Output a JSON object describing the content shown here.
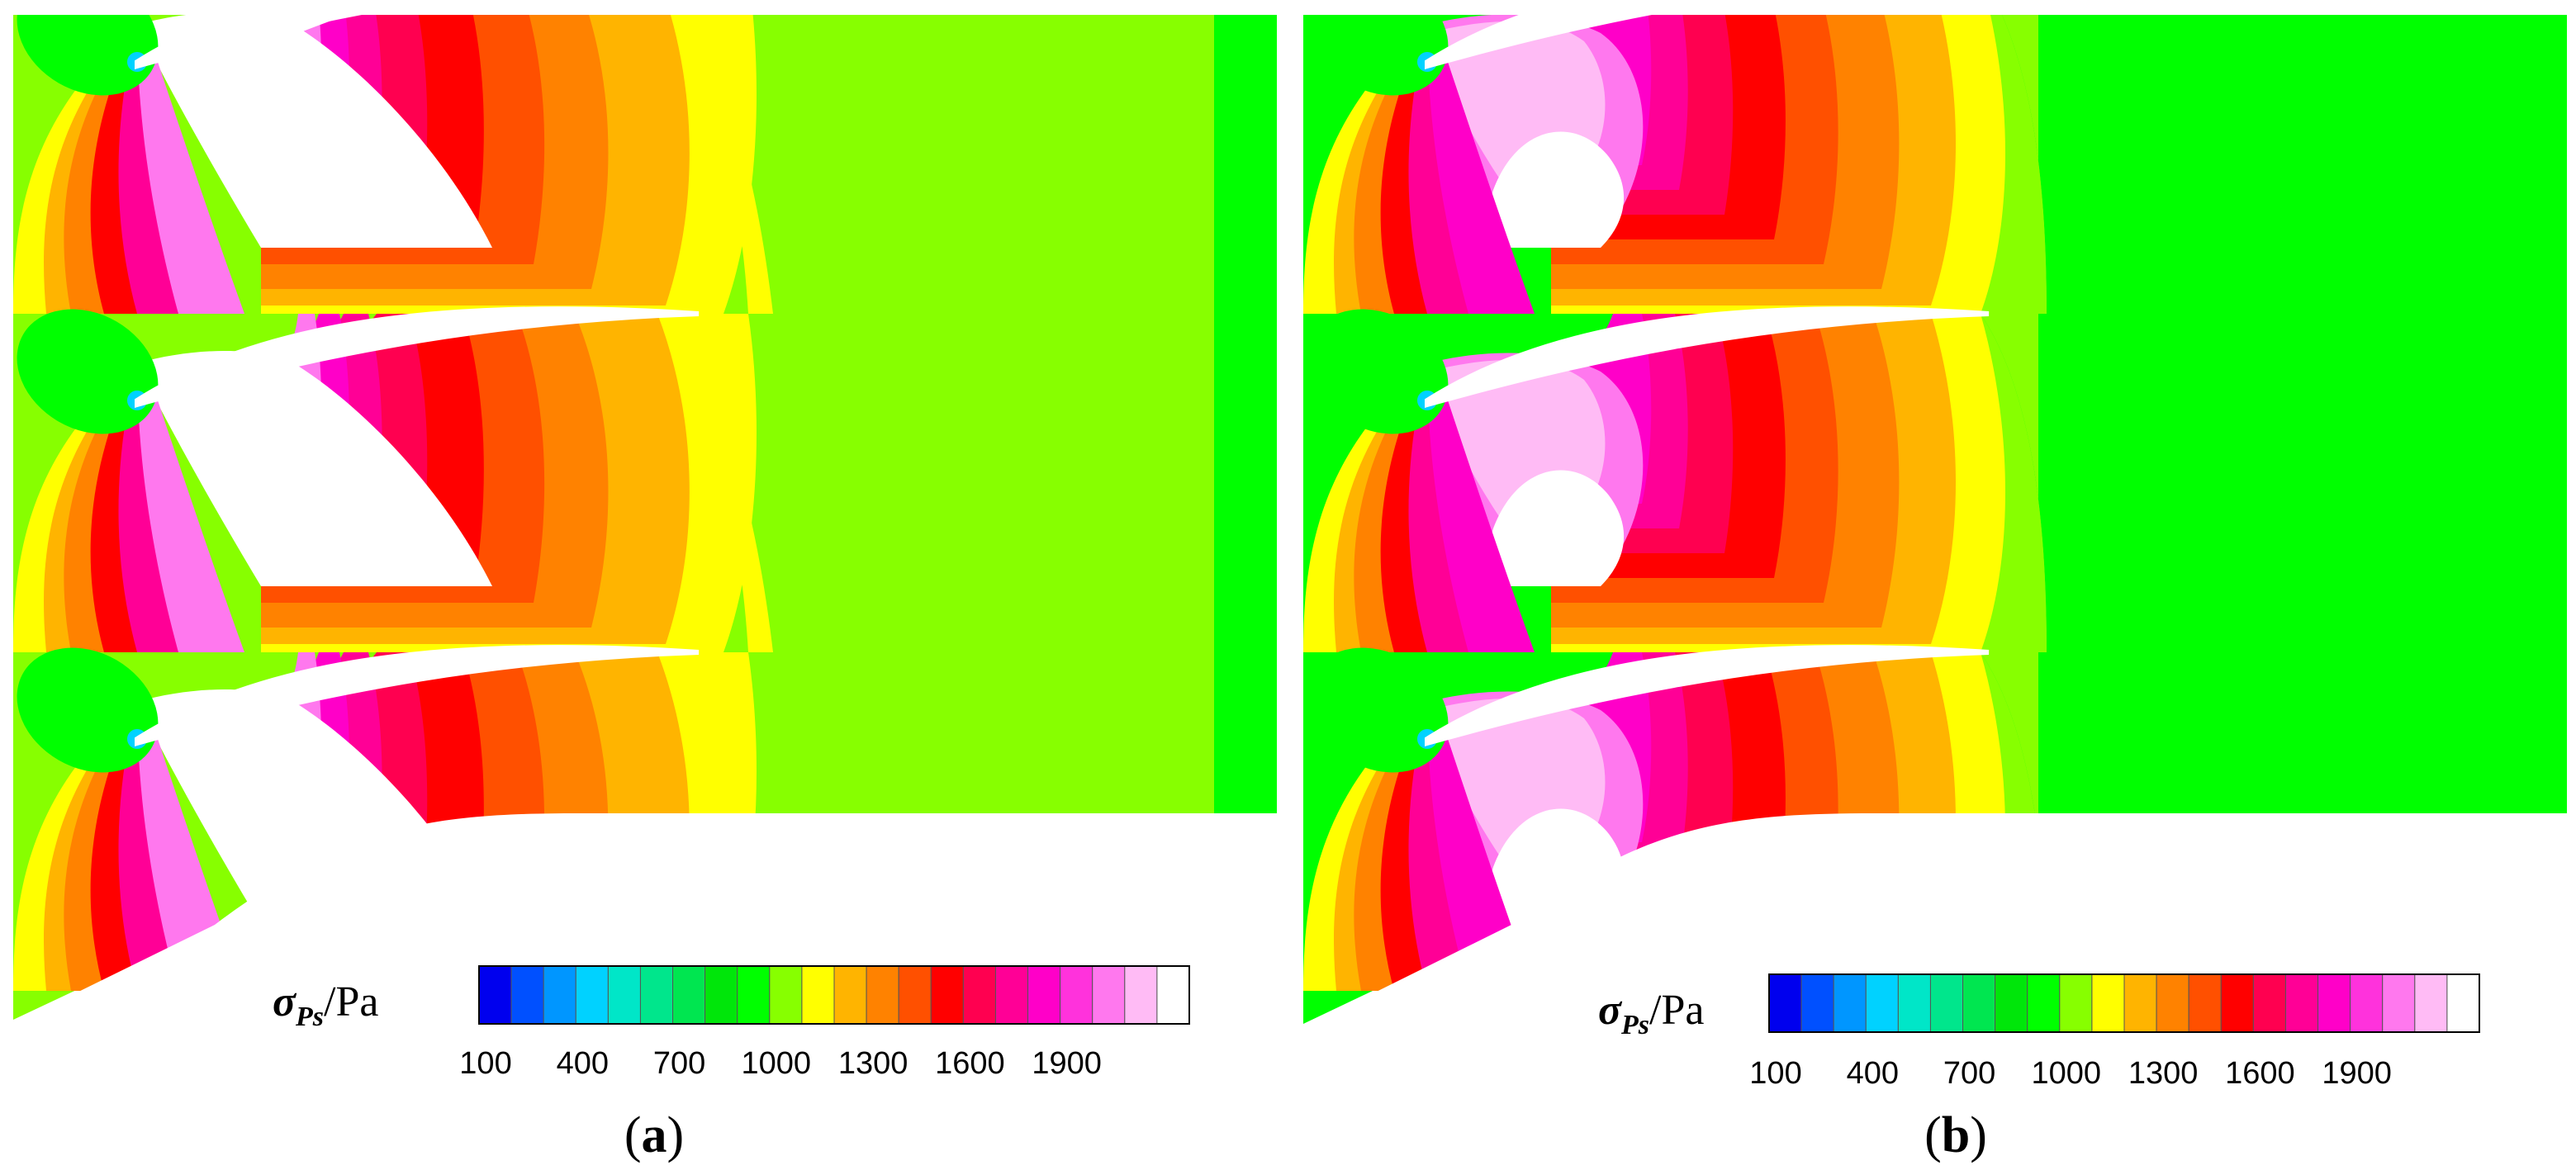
{
  "figure": {
    "panels": [
      {
        "id": "a",
        "caption_open": "(",
        "caption_letter": "a",
        "caption_close": ")"
      },
      {
        "id": "b",
        "caption_open": "(",
        "caption_letter": "b",
        "caption_close": ")"
      }
    ],
    "colorbar": {
      "symbol": "σ",
      "subscript": "Ps",
      "unit": "/Pa",
      "tick_labels": [
        "100",
        "400",
        "700",
        "1000",
        "1300",
        "1600",
        "1900"
      ],
      "levels": [
        "#0000ee",
        "#0050ff",
        "#0096ff",
        "#00d2ff",
        "#00e6c8",
        "#00e68c",
        "#00e650",
        "#00e60a",
        "#00ff00",
        "#87ff00",
        "#ffff00",
        "#ffb400",
        "#ff8200",
        "#ff5000",
        "#ff0000",
        "#ff0050",
        "#ff0096",
        "#ff00c8",
        "#ff32dc",
        "#ff78ee",
        "#ffbbf5",
        "#ffffff"
      ]
    },
    "colors": {
      "green_bright": "#00ff00",
      "green_yellow": "#87ff00",
      "yellow": "#ffff00",
      "orange": "#ffb400",
      "dark_orange": "#ff8200",
      "red_orange": "#ff5000",
      "red": "#ff0000",
      "crimson": "#ff0050",
      "magenta": "#ff00c8",
      "pink": "#ff78ee",
      "light_pink": "#ffbbf5"
    }
  }
}
